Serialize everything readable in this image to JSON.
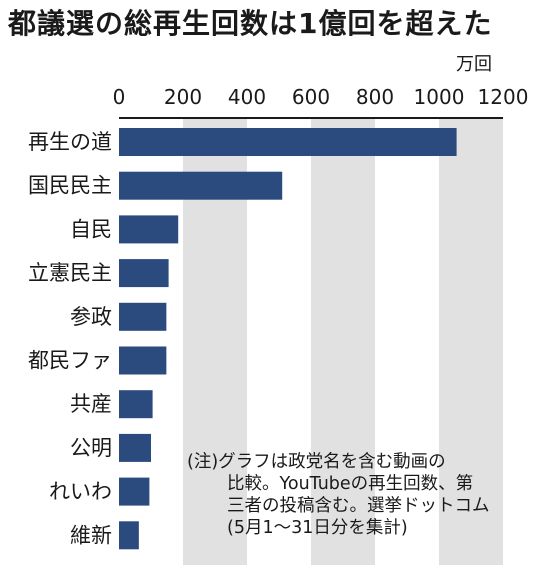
{
  "title": "都議選の総再生回数は1億回を超えた",
  "note": {
    "line1": "(注)グラフは政党名を含む動画の",
    "line2": "比較。YouTubeの再生回数、第",
    "line3": "三者の投稿含む。選挙ドットコム",
    "line4": "(5月1〜31日分を集計)"
  },
  "chart_data": {
    "type": "bar",
    "orientation": "horizontal",
    "unit_label": "万回",
    "categories": [
      "再生の道",
      "国民民主",
      "自民",
      "立憲民主",
      "参政",
      "都民ファ",
      "共産",
      "公明",
      "れいわ",
      "維新"
    ],
    "values": [
      1055,
      510,
      185,
      155,
      148,
      148,
      105,
      100,
      95,
      62
    ],
    "xlim": [
      0,
      1200
    ],
    "ticks": [
      0,
      200,
      400,
      600,
      800,
      1000,
      1200
    ],
    "tick_labels": [
      "0",
      "200",
      "400",
      "600",
      "800",
      "1000",
      "1200"
    ],
    "bar_color": "#2b4a7e",
    "band_color": "#e1e1e1",
    "grid": "alternating vertical bands"
  }
}
